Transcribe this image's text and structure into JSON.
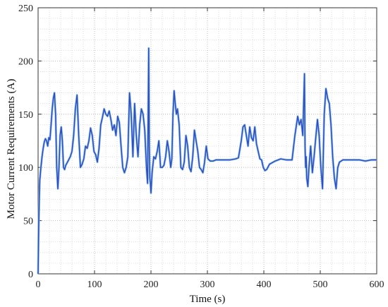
{
  "chart_data": {
    "type": "line",
    "title": "",
    "xlabel": "Time (s)",
    "ylabel": "Motor Current Requirements (A)",
    "xlim": [
      0,
      600
    ],
    "ylim": [
      0,
      250
    ],
    "xticks": [
      0,
      100,
      200,
      300,
      400,
      500,
      600
    ],
    "yticks": [
      0,
      50,
      100,
      150,
      200,
      250
    ],
    "grid": {
      "major": true,
      "minor": true
    },
    "colors": {
      "line": "#2f4fbf",
      "line_faint": "#8fc4ea",
      "grid": "#cfcfcf",
      "axis": "#333333"
    },
    "series": [
      {
        "name": "",
        "x": [
          0,
          1,
          2,
          3,
          5,
          7,
          9,
          11,
          13,
          15,
          17,
          19,
          21,
          23,
          25,
          27,
          29,
          31,
          33,
          35,
          37,
          39,
          41,
          43,
          45,
          47,
          49,
          51,
          53,
          55,
          57,
          60,
          63,
          66,
          69,
          72,
          75,
          78,
          81,
          84,
          87,
          90,
          93,
          96,
          99,
          102,
          105,
          108,
          111,
          114,
          117,
          120,
          123,
          126,
          129,
          132,
          135,
          138,
          141,
          144,
          147,
          150,
          153,
          156,
          159,
          162,
          165,
          168,
          171,
          174,
          177,
          180,
          183,
          186,
          189,
          192,
          194,
          196,
          197,
          198,
          199,
          200,
          202,
          205,
          208,
          211,
          214,
          217,
          220,
          223,
          226,
          229,
          232,
          235,
          237,
          239,
          241,
          243,
          245,
          247,
          250,
          253,
          256,
          259,
          262,
          265,
          268,
          271,
          274,
          277,
          280,
          283,
          286,
          289,
          292,
          295,
          298,
          301,
          305,
          310,
          315,
          320,
          330,
          340,
          350,
          355,
          360,
          363,
          366,
          369,
          372,
          375,
          378,
          381,
          384,
          387,
          390,
          393,
          396,
          399,
          402,
          405,
          410,
          420,
          430,
          440,
          450,
          455,
          460,
          463,
          466,
          469,
          472,
          473,
          474,
          475,
          476,
          478,
          480,
          483,
          486,
          489,
          492,
          495,
          498,
          501,
          504,
          507,
          510,
          513,
          516,
          519,
          522,
          525,
          528,
          531,
          534,
          537,
          540,
          550,
          560,
          570,
          580,
          590,
          600
        ],
        "y": [
          0,
          40,
          70,
          88,
          100,
          110,
          118,
          124,
          127,
          125,
          120,
          128,
          126,
          140,
          155,
          165,
          170,
          150,
          100,
          80,
          100,
          130,
          138,
          125,
          100,
          98,
          102,
          104,
          106,
          108,
          110,
          115,
          130,
          155,
          168,
          130,
          100,
          103,
          108,
          120,
          118,
          125,
          137,
          130,
          115,
          112,
          105,
          118,
          140,
          147,
          155,
          150,
          148,
          153,
          145,
          135,
          140,
          130,
          148,
          142,
          120,
          100,
          95,
          100,
          110,
          170,
          150,
          110,
          160,
          130,
          110,
          140,
          155,
          150,
          135,
          100,
          85,
          212,
          120,
          90,
          85,
          76,
          95,
          110,
          108,
          115,
          125,
          100,
          100,
          102,
          110,
          125,
          115,
          100,
          108,
          150,
          172,
          160,
          150,
          155,
          140,
          100,
          98,
          105,
          130,
          120,
          100,
          96,
          110,
          135,
          125,
          115,
          100,
          98,
          95,
          105,
          120,
          108,
          106,
          106,
          107,
          107,
          107,
          107,
          108,
          109,
          125,
          138,
          140,
          130,
          120,
          138,
          128,
          125,
          138,
          122,
          115,
          108,
          107,
          100,
          97,
          98,
          103,
          106,
          108,
          107,
          107,
          130,
          148,
          140,
          145,
          130,
          188,
          120,
          100,
          110,
          90,
          82,
          100,
          120,
          95,
          110,
          128,
          145,
          130,
          100,
          80,
          150,
          174,
          165,
          160,
          140,
          110,
          90,
          80,
          100,
          105,
          106,
          107,
          107,
          107,
          107,
          106,
          107,
          107
        ]
      }
    ]
  }
}
